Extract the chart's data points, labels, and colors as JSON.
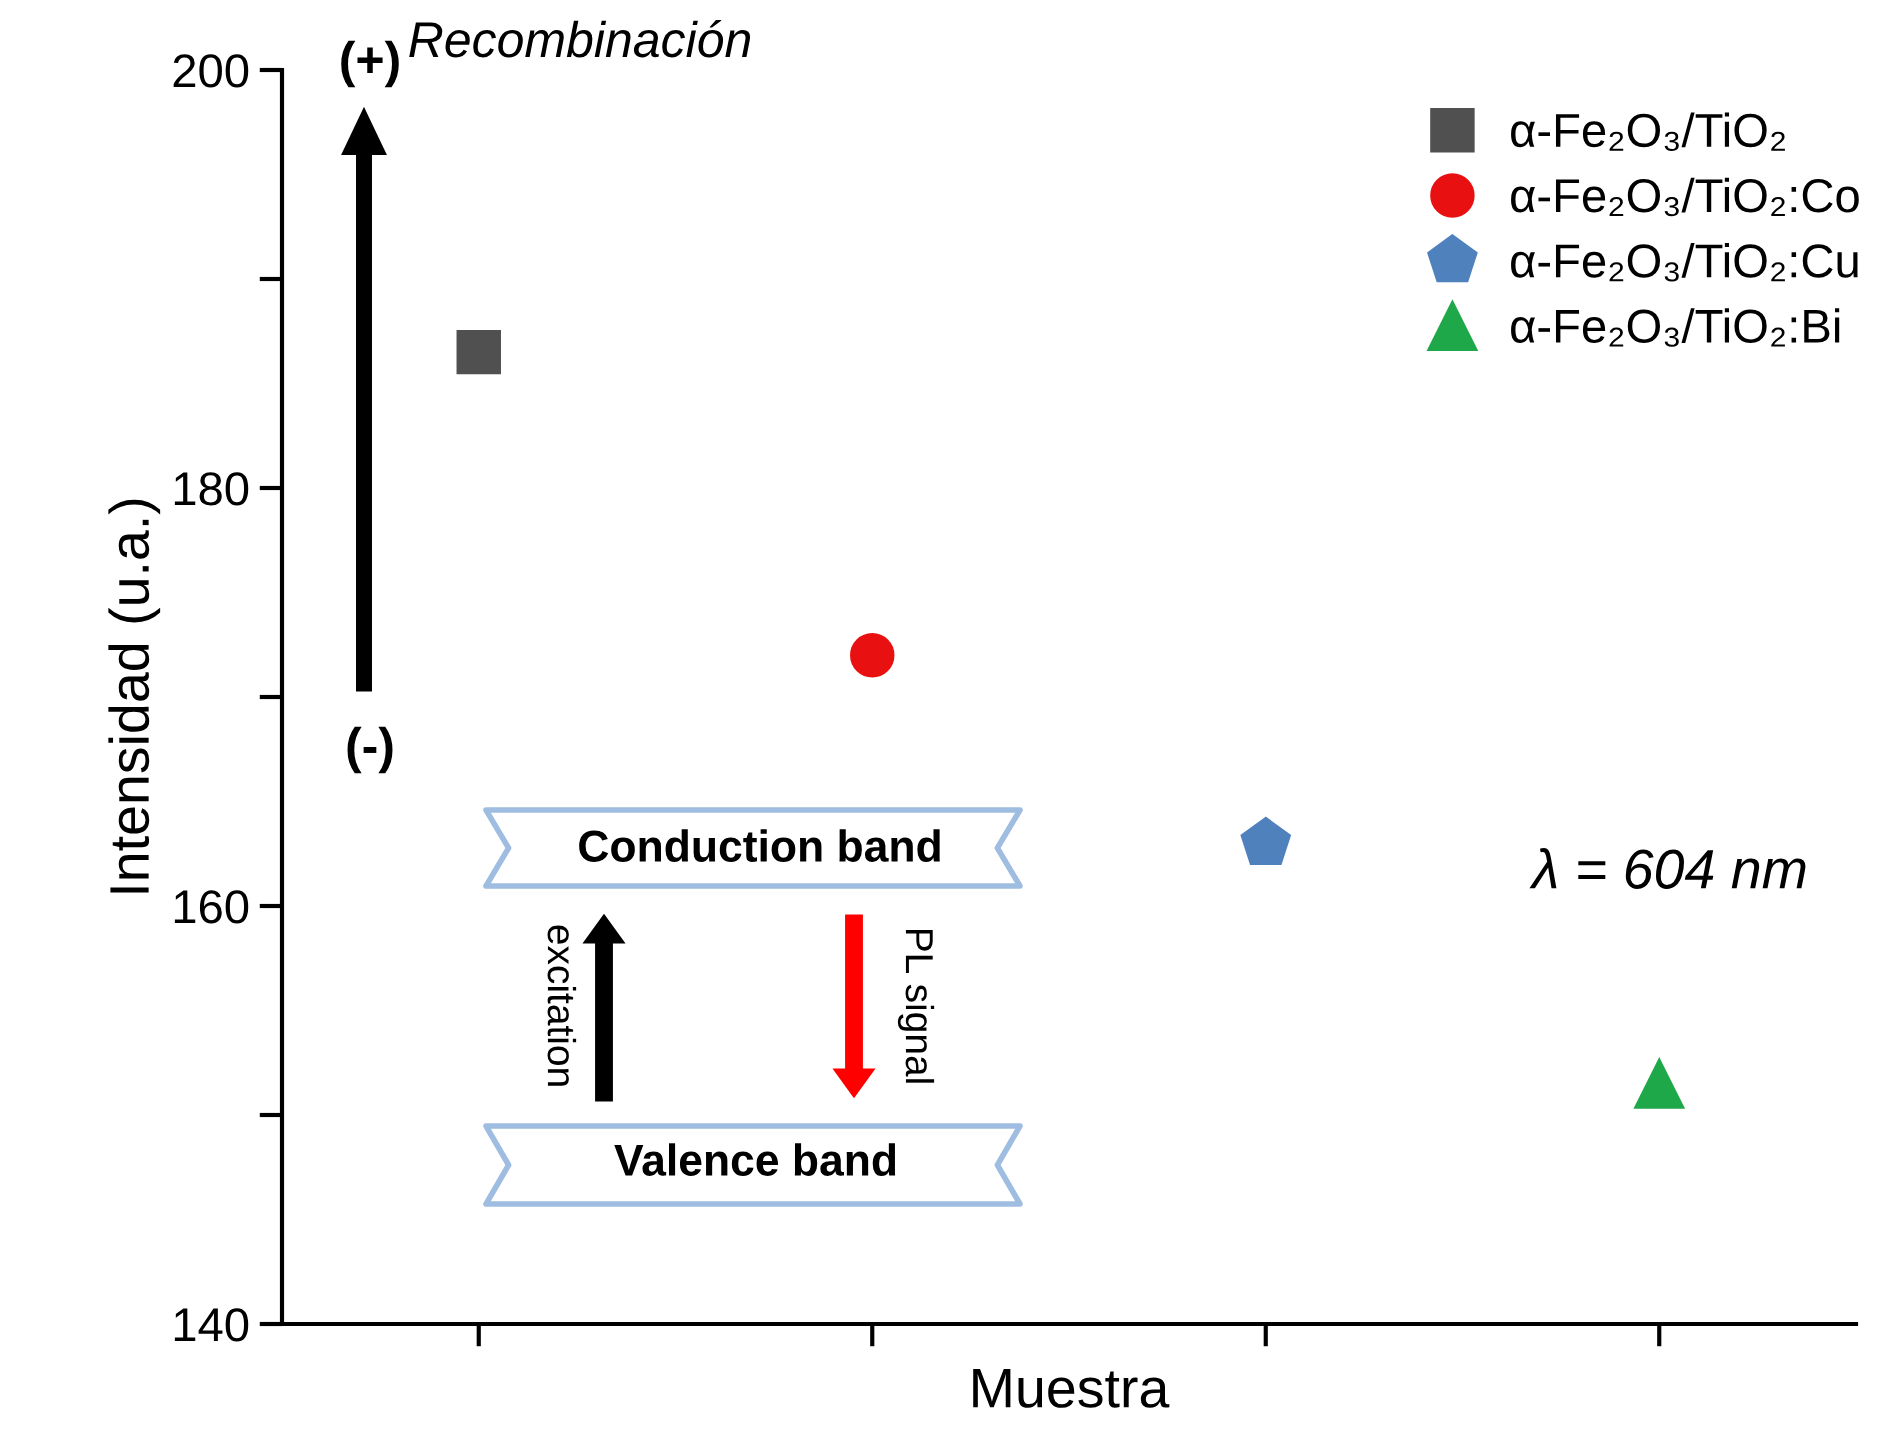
{
  "chart_data": {
    "type": "scatter",
    "xlabel": "Muestra",
    "ylabel": "Intensidad (u.a.)",
    "categories": [
      null,
      null,
      null,
      null
    ],
    "series": [
      {
        "name": "α-Fe₂O₃/TiO₂",
        "color": "#505050",
        "marker": "square",
        "values": [
          186.5,
          null,
          null,
          null
        ]
      },
      {
        "name": "α-Fe₂O₃/TiO₂:Co",
        "color": "#e81010",
        "marker": "circle",
        "values": [
          null,
          172,
          null,
          null
        ]
      },
      {
        "name": "α-Fe₂O₃/TiO₂:Cu",
        "color": "#4f81bd",
        "values": [
          null,
          null,
          163,
          null
        ]
      },
      {
        "name": "α-Fe₂O₃/TiO₂:Bi",
        "color": "#1fa84a",
        "marker": "triangle",
        "values": [
          null,
          null,
          null,
          151.5
        ]
      }
    ],
    "ylim": [
      140,
      200
    ],
    "yticks": [
      140,
      {
        "value": 150,
        "label": null
      },
      160,
      {
        "value": 170,
        "label": null
      },
      180,
      {
        "value": 190,
        "label": null
      },
      200
    ],
    "annotations": [
      "(+)",
      "(-)",
      "Recombinación",
      "Conduction band",
      "excitation",
      "PL signal",
      "Valence band",
      "λ = 604 nm"
    ],
    "legend": "top right",
    "grid": false
  }
}
